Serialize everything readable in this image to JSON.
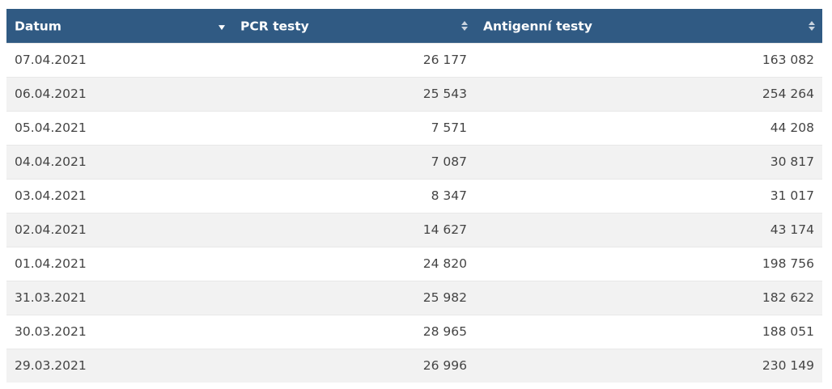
{
  "table": {
    "headers": [
      {
        "label": "Datum",
        "sort": "desc"
      },
      {
        "label": "PCR testy",
        "sort": "none"
      },
      {
        "label": "Antigenní testy",
        "sort": "none"
      }
    ],
    "rows": [
      {
        "datum": "07.04.2021",
        "pcr": "26 177",
        "antigen": "163 082"
      },
      {
        "datum": "06.04.2021",
        "pcr": "25 543",
        "antigen": "254 264"
      },
      {
        "datum": "05.04.2021",
        "pcr": "7 571",
        "antigen": "44 208"
      },
      {
        "datum": "04.04.2021",
        "pcr": "7 087",
        "antigen": "30 817"
      },
      {
        "datum": "03.04.2021",
        "pcr": "8 347",
        "antigen": "31 017"
      },
      {
        "datum": "02.04.2021",
        "pcr": "14 627",
        "antigen": "43 174"
      },
      {
        "datum": "01.04.2021",
        "pcr": "24 820",
        "antigen": "198 756"
      },
      {
        "datum": "31.03.2021",
        "pcr": "25 982",
        "antigen": "182 622"
      },
      {
        "datum": "30.03.2021",
        "pcr": "28 965",
        "antigen": "188 051"
      },
      {
        "datum": "29.03.2021",
        "pcr": "26 996",
        "antigen": "230 149"
      }
    ]
  },
  "colors": {
    "header_bg": "#305a83",
    "header_text": "#ffffff",
    "row_alt_bg": "#f2f2f2",
    "cell_text": "#444444"
  },
  "icons": {
    "datum_sort": "sort-descending-icon",
    "pcr_sort": "sort-both-icon",
    "antigen_sort": "sort-both-icon"
  }
}
